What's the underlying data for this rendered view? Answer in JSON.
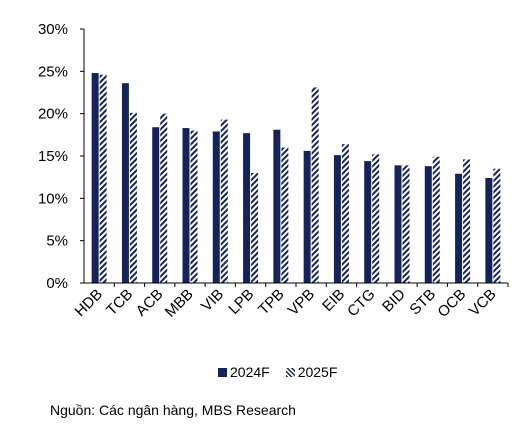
{
  "chart_data": {
    "type": "bar",
    "categories": [
      "HDB",
      "TCB",
      "ACB",
      "MBB",
      "VIB",
      "LPB",
      "TPB",
      "VPB",
      "EIB",
      "CTG",
      "BID",
      "STB",
      "OCB",
      "VCB"
    ],
    "series": [
      {
        "name": "2024F",
        "values": [
          24.8,
          23.6,
          18.4,
          18.3,
          17.9,
          17.7,
          18.1,
          15.6,
          15.1,
          14.4,
          13.9,
          13.8,
          12.9,
          12.4
        ]
      },
      {
        "name": "2025F",
        "values": [
          24.6,
          20.1,
          20.0,
          18.0,
          19.3,
          13.0,
          16.0,
          23.1,
          16.4,
          15.2,
          13.9,
          14.9,
          14.6,
          13.5
        ]
      }
    ],
    "ylim": [
      0,
      30
    ],
    "yticks": [
      "0%",
      "5%",
      "10%",
      "15%",
      "20%",
      "25%",
      "30%"
    ],
    "ytick_values": [
      0,
      5,
      10,
      15,
      20,
      25,
      30
    ],
    "grid": false,
    "legend_position": "bottom",
    "colors": {
      "series_2024": "#14245a",
      "series_2025": "#14245a",
      "axis": "#000000"
    }
  },
  "legend": {
    "label_2024": "2024F",
    "label_2025": "2025F"
  },
  "source_note": "Nguồn: Các ngân hàng, MBS Research"
}
